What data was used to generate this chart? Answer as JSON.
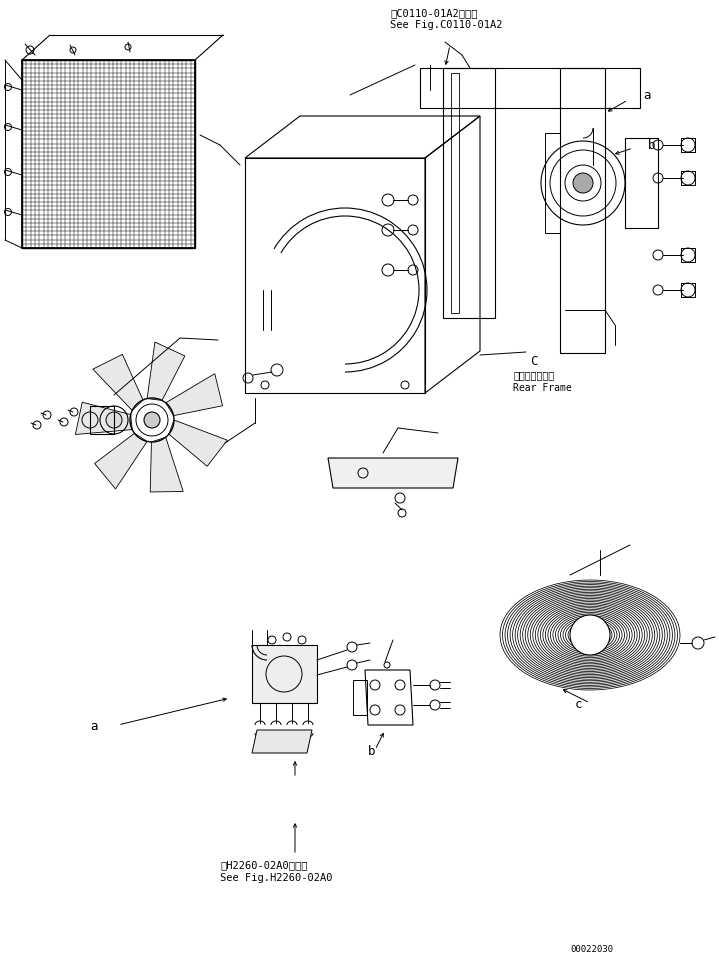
{
  "bg_color": "#ffffff",
  "line_color": "#000000",
  "fig_width": 7.19,
  "fig_height": 9.58,
  "dpi": 100,
  "top_annotation_1": "第C0110-01A2図参照",
  "top_annotation_2": "See Fig.C0110-01A2",
  "bottom_annotation_1": "第H2260-02A0図参照",
  "bottom_annotation_2": "See Fig.H2260-02A0",
  "rear_frame_jp": "リヤーフレーム",
  "rear_frame_en": "Rear Frame",
  "part_number": "00022030",
  "label_a_top": "a",
  "label_b_top": "b",
  "label_c_top": "C",
  "label_a_bot": "a",
  "label_b_bot": "b",
  "label_c_bot": "c"
}
